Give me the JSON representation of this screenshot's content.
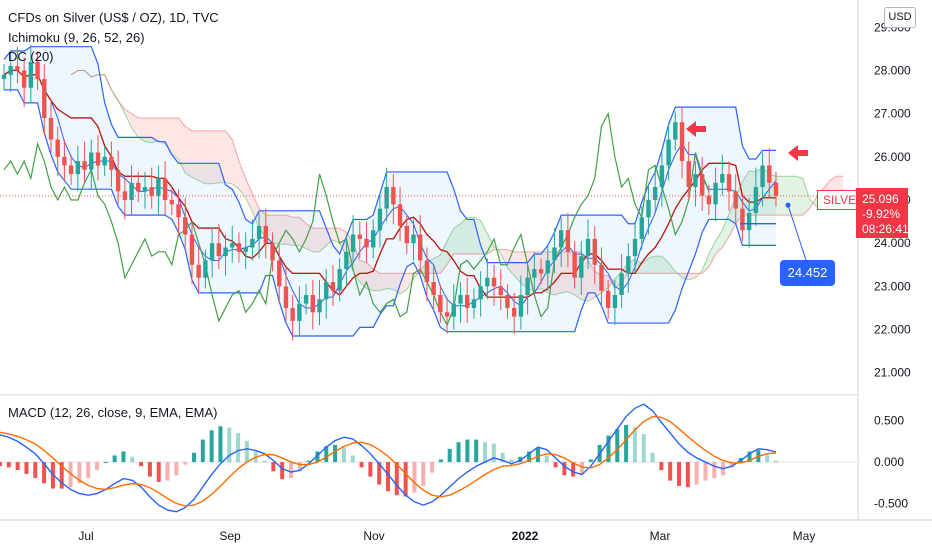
{
  "header": {
    "title": "CFDs on Silver (US$ / OZ), 1D, TVC",
    "indicator1": "Ichimoku (9, 26, 52, 26)",
    "indicator2": "DC (20)",
    "currency": "USD"
  },
  "macd_legend": "MACD (12, 26, close, 9, EMA, EMA)",
  "price_tag": {
    "symbol": "SILVER",
    "price": "25.096",
    "change": "-9.92%",
    "countdown": "08:26:41"
  },
  "tooltip_value": "24.452",
  "colors": {
    "up": "#26a69a",
    "down": "#ef5350",
    "donchian": "#2962ff",
    "donchian_mid": "#ff6d00",
    "tenkan": "#2962ff",
    "kijun": "#b71c1c",
    "chikou": "#43a047",
    "macd": "#2962ff",
    "signal": "#ff6d00",
    "arrow": "#f23645"
  },
  "chart_data": [
    {
      "type": "candlestick",
      "title": "CFDs on Silver (US$ / OZ), 1D, TVC",
      "x_tick_labels": [
        "Jul",
        "Sep",
        "Nov",
        "2022",
        "Mar",
        "May"
      ],
      "y_tick_labels": [
        "21.000",
        "22.000",
        "23.000",
        "24.000",
        "25.000",
        "26.000",
        "27.000",
        "28.000",
        "29.000"
      ],
      "ylim": [
        20.6,
        29.4
      ],
      "last_price": 25.096,
      "annotated_level": 24.452,
      "close_series": [
        27.9,
        28.1,
        28.0,
        27.6,
        28.2,
        27.8,
        26.9,
        26.4,
        26.0,
        25.8,
        25.6,
        25.9,
        25.7,
        26.1,
        25.8,
        26.0,
        25.7,
        25.2,
        25.0,
        25.4,
        25.2,
        25.3,
        25.1,
        25.5,
        25.0,
        24.9,
        24.6,
        24.2,
        23.5,
        23.2,
        23.6,
        24.0,
        23.7,
        23.9,
        24.0,
        23.8,
        23.9,
        24.1,
        24.4,
        24.0,
        23.6,
        23.0,
        22.5,
        22.2,
        22.6,
        22.8,
        22.4,
        22.7,
        23.1,
        22.9,
        23.4,
        23.8,
        24.2,
        24.1,
        23.9,
        24.3,
        24.8,
        25.3,
        24.9,
        24.4,
        24.0,
        24.2,
        23.6,
        23.1,
        22.8,
        22.4,
        22.3,
        22.6,
        22.8,
        22.5,
        22.7,
        23.0,
        23.2,
        23.0,
        22.8,
        22.5,
        22.3,
        22.8,
        23.2,
        23.4,
        23.3,
        23.6,
        23.9,
        24.3,
        23.8,
        23.2,
        23.7,
        24.1,
        23.5,
        22.9,
        22.5,
        22.8,
        23.3,
        23.7,
        24.1,
        24.6,
        25.0,
        25.3,
        25.8,
        26.4,
        26.8,
        25.9,
        25.3,
        25.6,
        25.1,
        24.9,
        25.4,
        25.6,
        25.2,
        24.8,
        24.3,
        24.7,
        25.3,
        25.8,
        25.4,
        25.096
      ]
    },
    {
      "type": "line",
      "title": "MACD (12, 26, close, 9, EMA, EMA)",
      "y_tick_labels": [
        "0.500",
        "0.000",
        "-0.500"
      ],
      "ylim": [
        -0.7,
        0.75
      ],
      "series": [
        {
          "values": [
            0.33,
            0.3,
            0.25,
            0.18,
            0.1,
            -0.02,
            -0.15,
            -0.25,
            -0.33,
            -0.38,
            -0.4,
            -0.38,
            -0.33,
            -0.26,
            -0.2,
            -0.22,
            -0.3,
            -0.42,
            -0.52,
            -0.58,
            -0.6,
            -0.55,
            -0.45,
            -0.3,
            -0.15,
            -0.02,
            0.08,
            0.14,
            0.16,
            0.14,
            0.1,
            0.02,
            -0.08,
            -0.12,
            -0.1,
            -0.02,
            0.08,
            0.18,
            0.26,
            0.3,
            0.28,
            0.2,
            0.1,
            -0.02,
            -0.15,
            -0.28,
            -0.4,
            -0.48,
            -0.52,
            -0.48,
            -0.4,
            -0.3,
            -0.2,
            -0.12,
            -0.05,
            0.0,
            0.05,
            0.02,
            -0.02,
            0.02,
            0.1,
            0.18,
            0.15,
            0.05,
            -0.05,
            -0.12,
            -0.15,
            -0.05,
            0.1,
            0.25,
            0.4,
            0.55,
            0.65,
            0.7,
            0.62,
            0.48,
            0.35,
            0.22,
            0.12,
            0.05,
            0.0,
            -0.05,
            -0.08,
            -0.05,
            0.02,
            0.1,
            0.16,
            0.15,
            0.12
          ]
        },
        {
          "values": [
            0.36,
            0.34,
            0.31,
            0.27,
            0.22,
            0.14,
            0.05,
            -0.05,
            -0.14,
            -0.22,
            -0.28,
            -0.32,
            -0.33,
            -0.31,
            -0.28,
            -0.26,
            -0.27,
            -0.31,
            -0.37,
            -0.44,
            -0.5,
            -0.53,
            -0.52,
            -0.47,
            -0.39,
            -0.29,
            -0.18,
            -0.08,
            0.0,
            0.06,
            0.09,
            0.09,
            0.05,
            0.0,
            -0.03,
            -0.03,
            0.0,
            0.06,
            0.13,
            0.19,
            0.23,
            0.24,
            0.21,
            0.15,
            0.07,
            -0.03,
            -0.14,
            -0.25,
            -0.34,
            -0.4,
            -0.42,
            -0.4,
            -0.35,
            -0.29,
            -0.22,
            -0.15,
            -0.09,
            -0.05,
            -0.04,
            -0.02,
            0.02,
            0.07,
            0.1,
            0.09,
            0.05,
            -0.01,
            -0.06,
            -0.07,
            -0.03,
            0.05,
            0.15,
            0.27,
            0.39,
            0.49,
            0.55,
            0.54,
            0.49,
            0.4,
            0.31,
            0.22,
            0.14,
            0.07,
            0.02,
            -0.01,
            -0.01,
            0.02,
            0.07,
            0.1,
            0.11
          ]
        }
      ]
    }
  ]
}
